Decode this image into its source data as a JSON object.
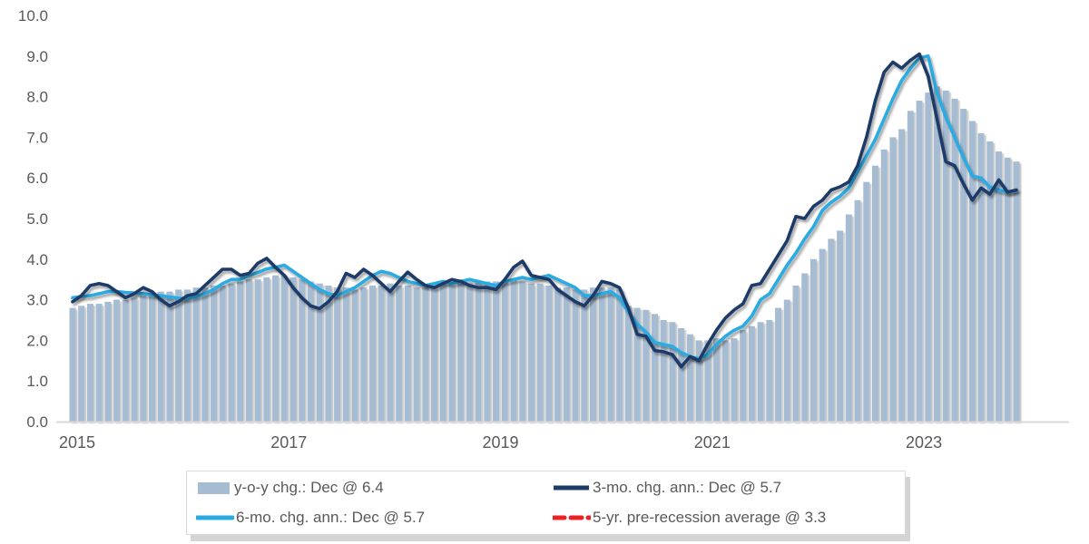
{
  "chart_data": {
    "type": "bar+line combo, monthly time series",
    "title": "",
    "x_monthly_start": "2015-01",
    "x_monthly_end": "2023-12",
    "months_per_series": 108,
    "x_tick_labels": [
      "2015",
      "2017",
      "2019",
      "2021",
      "2023"
    ],
    "ylim": [
      0.0,
      10.0
    ],
    "y_tick_labels": [
      "0.0",
      "1.0",
      "2.0",
      "3.0",
      "4.0",
      "5.0",
      "6.0",
      "7.0",
      "8.0",
      "9.0",
      "10.0"
    ],
    "grid": "off",
    "legend_position": "bottom",
    "series": [
      {
        "name": "y-o-y chg.: Dec @ 6.4",
        "type": "bar",
        "color": "#a6bcd3",
        "last_value_label": "Dec @ 6.4",
        "values": [
          2.8,
          2.85,
          2.9,
          2.9,
          2.95,
          3.0,
          3.0,
          3.05,
          3.1,
          3.15,
          3.2,
          3.2,
          3.25,
          3.25,
          3.3,
          3.3,
          3.35,
          3.35,
          3.4,
          3.45,
          3.5,
          3.5,
          3.55,
          3.6,
          3.6,
          3.55,
          3.5,
          3.45,
          3.4,
          3.35,
          3.3,
          3.3,
          3.25,
          3.3,
          3.35,
          3.35,
          3.4,
          3.35,
          3.35,
          3.3,
          3.3,
          3.35,
          3.4,
          3.4,
          3.5,
          3.4,
          3.45,
          3.45,
          3.45,
          3.45,
          3.5,
          3.45,
          3.4,
          3.4,
          3.35,
          3.3,
          3.3,
          3.25,
          3.25,
          3.3,
          3.3,
          3.3,
          3.25,
          2.85,
          2.8,
          2.75,
          2.65,
          2.5,
          2.45,
          2.3,
          2.15,
          2.0,
          2.0,
          2.05,
          2.0,
          2.05,
          2.25,
          2.35,
          2.45,
          2.5,
          2.8,
          3.0,
          3.35,
          3.65,
          4.0,
          4.25,
          4.5,
          4.7,
          5.1,
          5.45,
          5.9,
          6.3,
          6.7,
          7.0,
          7.2,
          7.65,
          7.9,
          8.1,
          8.25,
          8.15,
          7.95,
          7.7,
          7.4,
          7.1,
          6.9,
          6.65,
          6.5,
          6.4
        ]
      },
      {
        "name": "3-mo. chg. ann.: Dec @ 5.7",
        "type": "line",
        "color": "#1e3a67",
        "last_value_label": "Dec @ 5.7",
        "values": [
          2.95,
          3.1,
          3.35,
          3.4,
          3.35,
          3.2,
          3.05,
          3.15,
          3.3,
          3.2,
          3.0,
          2.85,
          2.95,
          3.1,
          3.15,
          3.35,
          3.55,
          3.75,
          3.75,
          3.6,
          3.65,
          3.9,
          4.02,
          3.8,
          3.6,
          3.3,
          3.05,
          2.85,
          2.78,
          2.95,
          3.2,
          3.65,
          3.55,
          3.75,
          3.6,
          3.4,
          3.2,
          3.45,
          3.68,
          3.5,
          3.35,
          3.3,
          3.4,
          3.5,
          3.45,
          3.35,
          3.3,
          3.3,
          3.25,
          3.5,
          3.8,
          3.95,
          3.6,
          3.55,
          3.5,
          3.25,
          3.1,
          2.95,
          2.85,
          3.1,
          3.45,
          3.4,
          3.3,
          2.8,
          2.15,
          2.1,
          1.75,
          1.72,
          1.65,
          1.35,
          1.6,
          1.5,
          1.9,
          2.25,
          2.55,
          2.75,
          2.9,
          3.35,
          3.4,
          3.75,
          4.1,
          4.45,
          5.05,
          5.0,
          5.3,
          5.45,
          5.7,
          5.78,
          5.9,
          6.3,
          7.0,
          7.9,
          8.6,
          8.85,
          8.7,
          8.9,
          9.05,
          8.5,
          7.45,
          6.4,
          6.3,
          5.85,
          5.45,
          5.75,
          5.6,
          5.95,
          5.65,
          5.7
        ]
      },
      {
        "name": "6-mo. chg. ann.: Dec @ 5.7",
        "type": "line",
        "color": "#29abe2",
        "last_value_label": "Dec @ 5.7",
        "values": [
          3.05,
          3.08,
          3.1,
          3.15,
          3.2,
          3.2,
          3.18,
          3.17,
          3.15,
          3.12,
          3.1,
          3.07,
          3.04,
          3.03,
          3.08,
          3.15,
          3.25,
          3.4,
          3.5,
          3.5,
          3.6,
          3.67,
          3.76,
          3.8,
          3.85,
          3.7,
          3.55,
          3.4,
          3.25,
          3.15,
          3.1,
          3.2,
          3.3,
          3.45,
          3.6,
          3.7,
          3.65,
          3.55,
          3.45,
          3.4,
          3.35,
          3.4,
          3.45,
          3.4,
          3.45,
          3.5,
          3.45,
          3.4,
          3.35,
          3.45,
          3.5,
          3.55,
          3.5,
          3.55,
          3.6,
          3.5,
          3.4,
          3.3,
          3.1,
          3.1,
          3.15,
          3.2,
          3.05,
          2.7,
          2.4,
          2.2,
          1.95,
          1.9,
          1.85,
          1.7,
          1.6,
          1.55,
          1.65,
          1.9,
          2.1,
          2.25,
          2.35,
          2.6,
          3.0,
          3.15,
          3.5,
          3.85,
          4.15,
          4.5,
          4.8,
          5.2,
          5.4,
          5.55,
          5.75,
          6.15,
          6.55,
          6.95,
          7.45,
          7.95,
          8.4,
          8.7,
          8.95,
          9.0,
          8.1,
          7.5,
          7.0,
          6.5,
          6.05,
          6.0,
          5.77,
          5.7,
          5.65,
          5.7
        ]
      },
      {
        "name": "5-yr. pre-recession average @ 3.3",
        "type": "dashed-horizontal-line",
        "color": "#ed2024",
        "value": 3.3,
        "span_month_indices": [
          0,
          59
        ],
        "span_description": "Jan 2015 through Dec 2019"
      }
    ],
    "colors": {
      "bar": "#a6bcd3",
      "line_3mo": "#1e3a67",
      "line_6mo": "#29abe2",
      "recession_avg": "#ed2024",
      "axis_text": "#595959",
      "axis_line": "#d9d9d9",
      "legend_border": "#d9d9d9"
    }
  }
}
